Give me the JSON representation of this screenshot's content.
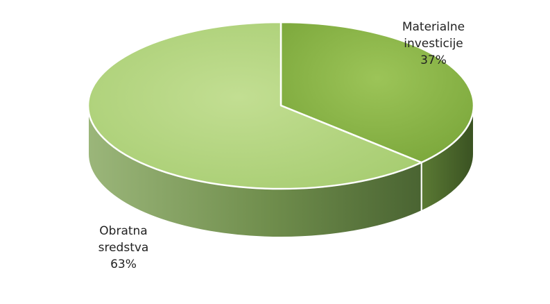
{
  "chart_data": {
    "type": "pie",
    "style": "3d",
    "title": "",
    "slices": [
      {
        "lines": [
          "Materialne",
          "investicije"
        ],
        "pct_label": "37%",
        "value": 37,
        "top_color": "#8ab545",
        "side_color": "#4d6a2c"
      },
      {
        "lines": [
          "Obratna",
          "sredstva"
        ],
        "pct_label": "63%",
        "value": 63,
        "top_color": "#b4d580",
        "side_color": "#7a9a58"
      }
    ],
    "legend": "none",
    "start_angle": "12 o'clock",
    "direction": "clockwise"
  }
}
